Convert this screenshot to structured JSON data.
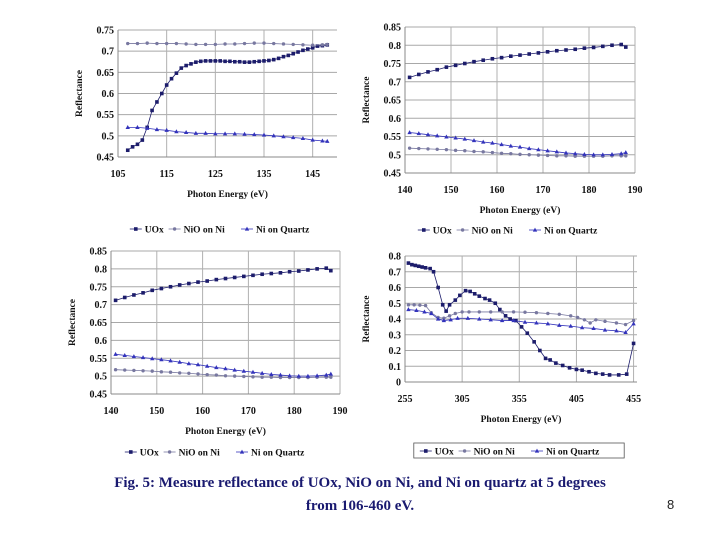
{
  "caption": {
    "line1": "Fig. 5: Measure reflectance of UOx, NiO on Ni, and Ni on quartz at 5 degrees",
    "line2": "from 106-460 eV."
  },
  "page_number": "8",
  "chart_data": [
    {
      "type": "line",
      "xlabel": "Photon Energy (eV)",
      "ylabel": "Reflectance",
      "xlim": [
        105,
        150
      ],
      "ylim": [
        0.45,
        0.75
      ],
      "xticks": [
        105,
        115,
        125,
        135,
        145
      ],
      "yticks": [
        0.45,
        0.5,
        0.55,
        0.6,
        0.65,
        0.7,
        0.75
      ],
      "grid": true,
      "legend": "bottom",
      "legend_boxed": false,
      "series": [
        {
          "name": "UOx",
          "color": "#1c1c6b",
          "marker": "square",
          "x": [
            107,
            108,
            109,
            110,
            111,
            112,
            113,
            114,
            115,
            116,
            117,
            118,
            119,
            120,
            121,
            122,
            123,
            124,
            125,
            126,
            127,
            128,
            129,
            130,
            131,
            132,
            133,
            134,
            135,
            136,
            137,
            138,
            139,
            140,
            141,
            142,
            143,
            144,
            145,
            146,
            147,
            148
          ],
          "y": [
            0.466,
            0.474,
            0.48,
            0.49,
            0.52,
            0.56,
            0.58,
            0.6,
            0.62,
            0.635,
            0.648,
            0.66,
            0.666,
            0.67,
            0.674,
            0.676,
            0.677,
            0.677,
            0.677,
            0.677,
            0.676,
            0.676,
            0.675,
            0.675,
            0.674,
            0.674,
            0.675,
            0.676,
            0.677,
            0.678,
            0.68,
            0.683,
            0.687,
            0.69,
            0.694,
            0.698,
            0.702,
            0.705,
            0.708,
            0.712,
            0.713,
            0.715
          ]
        },
        {
          "name": "NiO on Ni",
          "color": "#7878a0",
          "marker": "circle",
          "x": [
            107,
            109,
            111,
            113,
            115,
            117,
            119,
            121,
            123,
            125,
            127,
            129,
            131,
            133,
            135,
            137,
            139,
            141,
            143,
            145,
            147,
            148
          ],
          "y": [
            0.718,
            0.718,
            0.719,
            0.718,
            0.718,
            0.718,
            0.717,
            0.716,
            0.716,
            0.716,
            0.717,
            0.717,
            0.718,
            0.719,
            0.719,
            0.718,
            0.717,
            0.716,
            0.715,
            0.714,
            0.715,
            0.716
          ]
        },
        {
          "name": "Ni on Quartz",
          "color": "#3333bb",
          "marker": "triangle",
          "x": [
            107,
            109,
            111,
            113,
            115,
            117,
            119,
            121,
            123,
            125,
            127,
            129,
            131,
            133,
            135,
            137,
            139,
            141,
            143,
            145,
            147,
            148
          ],
          "y": [
            0.52,
            0.52,
            0.518,
            0.515,
            0.513,
            0.51,
            0.508,
            0.506,
            0.506,
            0.505,
            0.505,
            0.505,
            0.504,
            0.503,
            0.502,
            0.5,
            0.498,
            0.496,
            0.494,
            0.49,
            0.488,
            0.487
          ]
        }
      ]
    },
    {
      "type": "line",
      "xlabel": "Photon Energy (eV)",
      "ylabel": "Reflectance",
      "xlim": [
        140,
        190
      ],
      "ylim": [
        0.45,
        0.85
      ],
      "xticks": [
        140,
        150,
        160,
        170,
        180,
        190
      ],
      "yticks": [
        0.45,
        0.5,
        0.55,
        0.6,
        0.65,
        0.7,
        0.75,
        0.8,
        0.85
      ],
      "grid": true,
      "legend": "bottom",
      "legend_boxed": false,
      "series": [
        {
          "name": "UOx",
          "color": "#1c1c6b",
          "marker": "square",
          "x": [
            141,
            143,
            145,
            147,
            149,
            151,
            153,
            155,
            157,
            159,
            161,
            163,
            165,
            167,
            169,
            171,
            173,
            175,
            177,
            179,
            181,
            183,
            185,
            187,
            188
          ],
          "y": [
            0.712,
            0.72,
            0.727,
            0.733,
            0.74,
            0.745,
            0.75,
            0.755,
            0.759,
            0.763,
            0.766,
            0.77,
            0.773,
            0.776,
            0.779,
            0.782,
            0.785,
            0.787,
            0.789,
            0.792,
            0.794,
            0.797,
            0.8,
            0.802,
            0.795
          ]
        },
        {
          "name": "NiO on Ni",
          "color": "#7878a0",
          "marker": "circle",
          "x": [
            141,
            143,
            145,
            147,
            149,
            151,
            153,
            155,
            157,
            159,
            161,
            163,
            165,
            167,
            169,
            171,
            173,
            175,
            177,
            179,
            181,
            183,
            185,
            187,
            188
          ],
          "y": [
            0.518,
            0.517,
            0.516,
            0.515,
            0.514,
            0.512,
            0.511,
            0.509,
            0.508,
            0.506,
            0.504,
            0.503,
            0.501,
            0.5,
            0.499,
            0.498,
            0.497,
            0.497,
            0.496,
            0.496,
            0.496,
            0.496,
            0.497,
            0.497,
            0.497
          ]
        },
        {
          "name": "Ni on Quartz",
          "color": "#3333bb",
          "marker": "triangle",
          "x": [
            141,
            143,
            145,
            147,
            149,
            151,
            153,
            155,
            157,
            159,
            161,
            163,
            165,
            167,
            169,
            171,
            173,
            175,
            177,
            179,
            181,
            183,
            185,
            187,
            188
          ],
          "y": [
            0.561,
            0.558,
            0.555,
            0.552,
            0.549,
            0.546,
            0.543,
            0.539,
            0.535,
            0.532,
            0.528,
            0.524,
            0.521,
            0.517,
            0.514,
            0.511,
            0.508,
            0.505,
            0.503,
            0.501,
            0.5,
            0.5,
            0.501,
            0.503,
            0.506
          ]
        }
      ]
    },
    {
      "type": "line",
      "xlabel": "Photon Energy (eV)",
      "ylabel": "Reflectance",
      "xlim": [
        140,
        190
      ],
      "ylim": [
        0.45,
        0.85
      ],
      "xticks": [
        140,
        150,
        160,
        170,
        180,
        190
      ],
      "yticks": [
        0.45,
        0.5,
        0.55,
        0.6,
        0.65,
        0.7,
        0.75,
        0.8,
        0.85
      ],
      "grid": true,
      "legend": "bottom",
      "legend_boxed": false,
      "series": [
        {
          "name": "UOx",
          "color": "#1c1c6b",
          "marker": "square",
          "x": [
            141,
            143,
            145,
            147,
            149,
            151,
            153,
            155,
            157,
            159,
            161,
            163,
            165,
            167,
            169,
            171,
            173,
            175,
            177,
            179,
            181,
            183,
            185,
            187,
            188
          ],
          "y": [
            0.712,
            0.72,
            0.727,
            0.733,
            0.74,
            0.745,
            0.75,
            0.755,
            0.759,
            0.763,
            0.766,
            0.77,
            0.773,
            0.776,
            0.779,
            0.782,
            0.785,
            0.787,
            0.789,
            0.792,
            0.794,
            0.797,
            0.8,
            0.802,
            0.795
          ]
        },
        {
          "name": "NiO on Ni",
          "color": "#7878a0",
          "marker": "circle",
          "x": [
            141,
            143,
            145,
            147,
            149,
            151,
            153,
            155,
            157,
            159,
            161,
            163,
            165,
            167,
            169,
            171,
            173,
            175,
            177,
            179,
            181,
            183,
            185,
            187,
            188
          ],
          "y": [
            0.518,
            0.517,
            0.516,
            0.515,
            0.514,
            0.512,
            0.511,
            0.509,
            0.508,
            0.506,
            0.504,
            0.503,
            0.501,
            0.5,
            0.499,
            0.498,
            0.497,
            0.497,
            0.496,
            0.496,
            0.496,
            0.496,
            0.497,
            0.497,
            0.497
          ]
        },
        {
          "name": "Ni on Quartz",
          "color": "#3333bb",
          "marker": "triangle",
          "x": [
            141,
            143,
            145,
            147,
            149,
            151,
            153,
            155,
            157,
            159,
            161,
            163,
            165,
            167,
            169,
            171,
            173,
            175,
            177,
            179,
            181,
            183,
            185,
            187,
            188
          ],
          "y": [
            0.561,
            0.558,
            0.555,
            0.552,
            0.549,
            0.546,
            0.543,
            0.539,
            0.535,
            0.532,
            0.528,
            0.524,
            0.521,
            0.517,
            0.514,
            0.511,
            0.508,
            0.505,
            0.503,
            0.501,
            0.5,
            0.5,
            0.501,
            0.503,
            0.506
          ]
        }
      ]
    },
    {
      "type": "line",
      "xlabel": "Photon Energy (eV)",
      "ylabel": "Reflectance",
      "xlim": [
        255,
        458
      ],
      "ylim": [
        0,
        0.8
      ],
      "xticks": [
        255,
        305,
        355,
        405,
        455
      ],
      "yticks": [
        0,
        0.1,
        0.2,
        0.3,
        0.4,
        0.5,
        0.6,
        0.7,
        0.8
      ],
      "grid": true,
      "legend": "bottom",
      "legend_boxed": true,
      "series": [
        {
          "name": "UOx",
          "color": "#1c1c6b",
          "marker": "square",
          "x": [
            258,
            261,
            264,
            267,
            270,
            273,
            277,
            280,
            284,
            288,
            291,
            294,
            299,
            303,
            308,
            312,
            316,
            320,
            325,
            329,
            334,
            338,
            343,
            347,
            352,
            357,
            362,
            368,
            373,
            378,
            382,
            387,
            393,
            399,
            405,
            410,
            416,
            422,
            428,
            434,
            442,
            449,
            455
          ],
          "y": [
            0.755,
            0.745,
            0.74,
            0.735,
            0.73,
            0.725,
            0.72,
            0.7,
            0.6,
            0.49,
            0.45,
            0.49,
            0.52,
            0.55,
            0.58,
            0.575,
            0.56,
            0.545,
            0.53,
            0.52,
            0.5,
            0.46,
            0.42,
            0.4,
            0.39,
            0.35,
            0.31,
            0.255,
            0.2,
            0.15,
            0.14,
            0.12,
            0.105,
            0.09,
            0.08,
            0.075,
            0.065,
            0.055,
            0.05,
            0.045,
            0.045,
            0.05,
            0.245
          ]
        },
        {
          "name": "NiO on Ni",
          "color": "#7878a0",
          "marker": "circle",
          "x": [
            258,
            263,
            268,
            273,
            278,
            284,
            289,
            294,
            299,
            305,
            311,
            320,
            330,
            340,
            350,
            360,
            370,
            380,
            390,
            400,
            406,
            412,
            417,
            422,
            430,
            440,
            448,
            455
          ],
          "y": [
            0.49,
            0.49,
            0.488,
            0.485,
            0.44,
            0.41,
            0.405,
            0.42,
            0.435,
            0.445,
            0.445,
            0.445,
            0.445,
            0.445,
            0.445,
            0.443,
            0.44,
            0.435,
            0.43,
            0.42,
            0.41,
            0.395,
            0.375,
            0.395,
            0.385,
            0.375,
            0.365,
            0.39
          ]
        },
        {
          "name": "Ni on Quartz",
          "color": "#3333bb",
          "marker": "triangle",
          "x": [
            258,
            265,
            272,
            278,
            284,
            289,
            295,
            301,
            310,
            320,
            330,
            340,
            350,
            360,
            370,
            380,
            390,
            400,
            410,
            420,
            430,
            440,
            448,
            455
          ],
          "y": [
            0.46,
            0.455,
            0.445,
            0.435,
            0.4,
            0.39,
            0.395,
            0.405,
            0.405,
            0.4,
            0.395,
            0.39,
            0.39,
            0.38,
            0.375,
            0.37,
            0.36,
            0.355,
            0.345,
            0.34,
            0.33,
            0.325,
            0.315,
            0.37
          ]
        }
      ]
    }
  ]
}
